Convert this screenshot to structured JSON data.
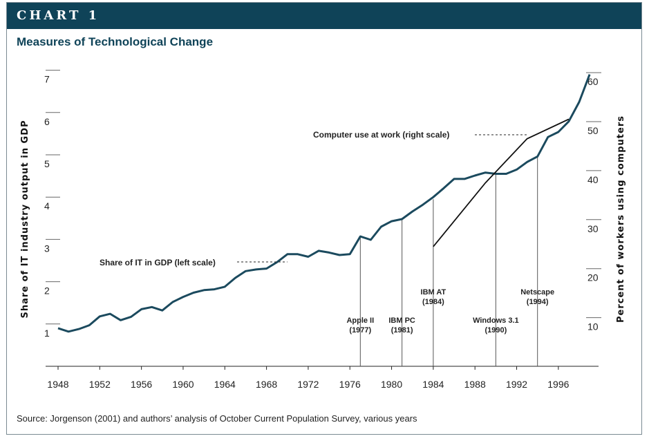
{
  "header": {
    "banner": "CHART 1",
    "subtitle": "Measures of Technological Change"
  },
  "footer": {
    "source": "Source: Jorgenson (2001) and authors’ analysis of October Current Population Survey, various years"
  },
  "colors": {
    "banner": "#0f4358",
    "it_share_line": "#1b4a5e",
    "computer_line": "#111111"
  },
  "chart_data": {
    "type": "line",
    "title": "Measures of Technological Change",
    "xlabel": "",
    "ylabel_left": "Share of IT industry output in GDP",
    "ylabel_right": "Percent of workers using computers",
    "ylim_left": [
      0,
      7
    ],
    "ylim_right": [
      0,
      60
    ],
    "xlim": [
      1947,
      2000
    ],
    "x_ticks": [
      1948,
      1952,
      1956,
      1960,
      1964,
      1968,
      1972,
      1976,
      1980,
      1984,
      1988,
      1992,
      1996
    ],
    "y_ticks_left": [
      1,
      2,
      3,
      4,
      5,
      6,
      7
    ],
    "y_ticks_right": [
      10,
      20,
      30,
      40,
      50,
      60
    ],
    "series": [
      {
        "name": "Share of IT in GDP (left scale)",
        "axis": "left",
        "x": [
          1948,
          1949,
          1950,
          1951,
          1952,
          1953,
          1954,
          1955,
          1956,
          1957,
          1958,
          1959,
          1960,
          1961,
          1962,
          1963,
          1964,
          1965,
          1966,
          1967,
          1968,
          1969,
          1970,
          1971,
          1972,
          1973,
          1974,
          1975,
          1976,
          1977,
          1978,
          1979,
          1980,
          1981,
          1982,
          1983,
          1984,
          1985,
          1986,
          1987,
          1988,
          1989,
          1990,
          1991,
          1992,
          1993,
          1994,
          1995,
          1996,
          1997,
          1998,
          1999
        ],
        "y": [
          0.9,
          0.82,
          0.88,
          0.97,
          1.18,
          1.24,
          1.09,
          1.17,
          1.35,
          1.4,
          1.32,
          1.52,
          1.64,
          1.74,
          1.8,
          1.82,
          1.88,
          2.09,
          2.25,
          2.29,
          2.31,
          2.46,
          2.65,
          2.65,
          2.59,
          2.73,
          2.69,
          2.63,
          2.65,
          3.07,
          2.99,
          3.3,
          3.43,
          3.48,
          3.66,
          3.82,
          4.0,
          4.21,
          4.43,
          4.43,
          4.51,
          4.58,
          4.55,
          4.55,
          4.65,
          4.83,
          4.96,
          5.42,
          5.54,
          5.79,
          6.25,
          6.9
        ]
      },
      {
        "name": "Computer use at work (right scale)",
        "axis": "right",
        "x": [
          1984,
          1989,
          1993,
          1997
        ],
        "y": [
          24.5,
          37.5,
          46.5,
          50.5
        ]
      }
    ],
    "annotations": [
      {
        "text": "Apple II",
        "year_label": "(1977)",
        "x": 1977
      },
      {
        "text": "IBM PC",
        "year_label": "(1981)",
        "x": 1981
      },
      {
        "text": "IBM AT",
        "year_label": "(1984)",
        "x": 1984
      },
      {
        "text": "Windows 3.1",
        "year_label": "(1990)",
        "x": 1990
      },
      {
        "text": "Netscape",
        "year_label": "(1994)",
        "x": 1994
      }
    ],
    "series_labels": {
      "left": "Share of IT in GDP (left scale)",
      "right": "Computer use at work (right scale)"
    },
    "grid": false
  }
}
